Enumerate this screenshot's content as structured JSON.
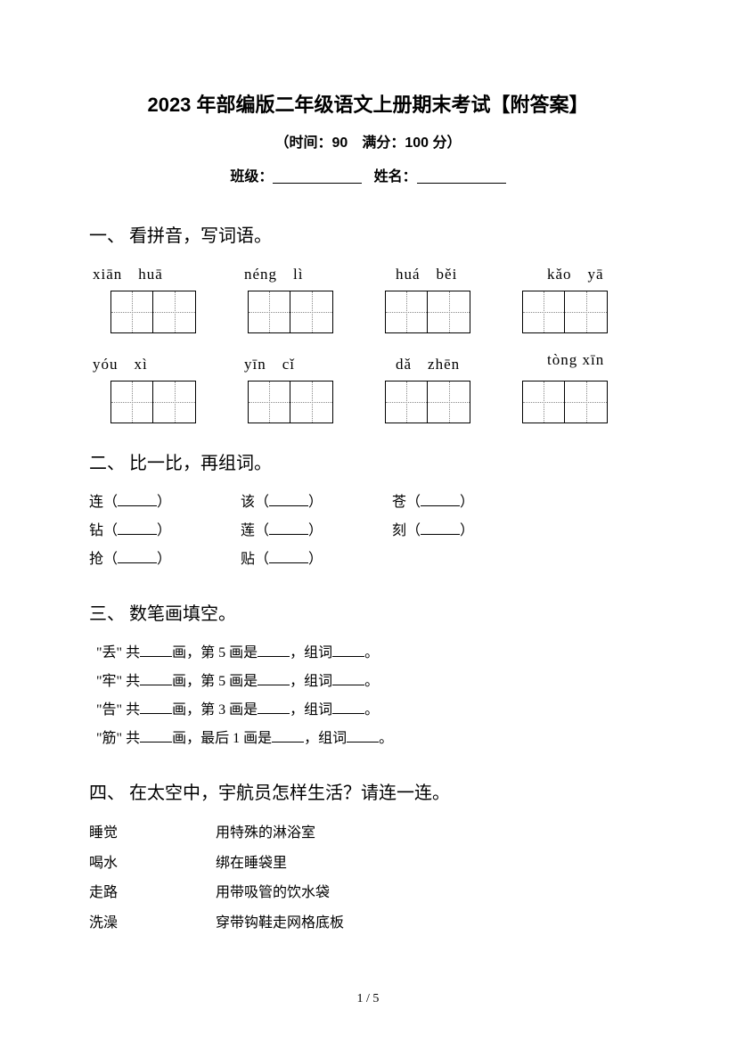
{
  "title": "2023 年部编版二年级语文上册期末考试【附答案】",
  "subtitle": "（时间：90　满分：100 分）",
  "info": {
    "class_label": "班级：",
    "name_label": "姓名："
  },
  "section1": {
    "title": "一、 看拼音，写词语。",
    "row1": [
      "xiān　huā",
      "néng　lì",
      "huá　běi",
      "kǎo　yā"
    ],
    "row2": [
      "yóu　xì",
      "yīn　cǐ",
      "dǎ　zhēn",
      "tòng  xīn"
    ]
  },
  "section2": {
    "title": "二、 比一比，再组词。",
    "pairs": [
      "连",
      "该",
      "苍",
      "钻",
      "莲",
      "刻",
      "抢",
      "贴"
    ]
  },
  "section3": {
    "title": "三、 数笔画填空。",
    "lines": [
      {
        "char": "丢",
        "middle": "画，第 5 画是",
        "end": "，组词"
      },
      {
        "char": "牢",
        "middle": "画，第 5 画是",
        "end": "，组词"
      },
      {
        "char": "告",
        "middle": "画，第 3 画是",
        "end": "，组词"
      },
      {
        "char": "筋",
        "middle": "画，最后 1 画是",
        "end": "，组词"
      }
    ]
  },
  "section4": {
    "title": "四、 在太空中，宇航员怎样生活？请连一连。",
    "left": [
      "睡觉",
      "喝水",
      "走路",
      "洗澡"
    ],
    "right": [
      "用特殊的淋浴室",
      "绑在睡袋里",
      "用带吸管的饮水袋",
      "穿带钩鞋走网格底板"
    ]
  },
  "page": "1  /  5"
}
